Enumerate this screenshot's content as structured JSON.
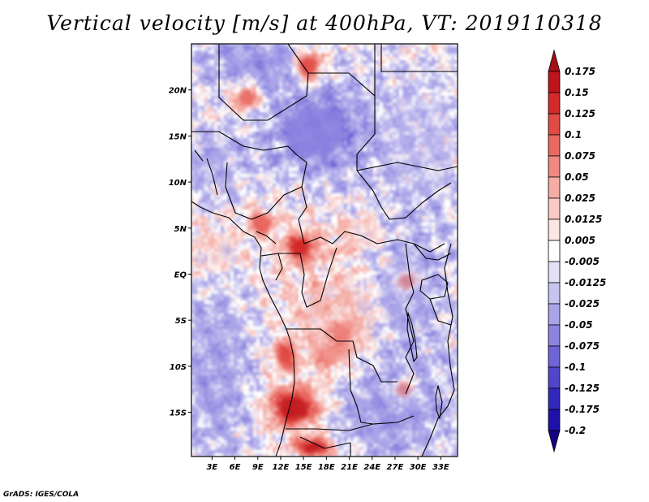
{
  "chart_data": {
    "type": "heatmap",
    "title": "Vertical velocity [m/s] at 400hPa, VT: 2019110318",
    "xlabel": "",
    "ylabel": "",
    "x_ticks": [
      {
        "value": 3,
        "label": "3E"
      },
      {
        "value": 6,
        "label": "6E"
      },
      {
        "value": 9,
        "label": "9E"
      },
      {
        "value": 12,
        "label": "12E"
      },
      {
        "value": 15,
        "label": "15E"
      },
      {
        "value": 18,
        "label": "18E"
      },
      {
        "value": 21,
        "label": "21E"
      },
      {
        "value": 24,
        "label": "24E"
      },
      {
        "value": 27,
        "label": "27E"
      },
      {
        "value": 30,
        "label": "30E"
      },
      {
        "value": 33,
        "label": "33E"
      }
    ],
    "y_ticks": [
      {
        "value": 20,
        "label": "20N"
      },
      {
        "value": 15,
        "label": "15N"
      },
      {
        "value": 10,
        "label": "10N"
      },
      {
        "value": 5,
        "label": "5N"
      },
      {
        "value": 0,
        "label": "EQ"
      },
      {
        "value": -5,
        "label": "5S"
      },
      {
        "value": -10,
        "label": "10S"
      },
      {
        "value": -15,
        "label": "15S"
      }
    ],
    "xlim": [
      0.3,
      35.2
    ],
    "ylim": [
      -19.8,
      25.0
    ],
    "colorbar": {
      "position": "right",
      "levels": [
        "0.175",
        "0.15",
        "0.125",
        "0.1",
        "0.075",
        "0.05",
        "0.025",
        "0.0125",
        "0.005",
        "-0.005",
        "-0.0125",
        "-0.025",
        "-0.05",
        "-0.075",
        "-0.1",
        "-0.125",
        "-0.175",
        "-0.2"
      ],
      "colors": [
        "#a50f15",
        "#c0141d",
        "#d42a2a",
        "#e04b44",
        "#e86a62",
        "#ef8a82",
        "#f4aca5",
        "#f8cbc6",
        "#fce6e3",
        "#ffffff",
        "#e3e1f7",
        "#c8c4f0",
        "#aaa4e8",
        "#8c84df",
        "#6e64d6",
        "#5046cc",
        "#3228bf",
        "#1e10a8",
        "#140080"
      ]
    },
    "features": [
      {
        "lon": 13.7,
        "lat": -14.5,
        "w": 3.2,
        "h": 2.2,
        "value": 0.16
      },
      {
        "lon": 16.3,
        "lat": -18.8,
        "w": 2.5,
        "h": 1.0,
        "value": 0.15
      },
      {
        "lon": 14.6,
        "lat": 2.9,
        "w": 2.0,
        "h": 1.5,
        "value": 0.13
      },
      {
        "lon": 9.5,
        "lat": 5.6,
        "w": 1.8,
        "h": 1.3,
        "value": 0.09
      },
      {
        "lon": 12.6,
        "lat": -8.9,
        "w": 1.5,
        "h": 1.5,
        "value": 0.12
      },
      {
        "lon": 7.5,
        "lat": 19.2,
        "w": 1.8,
        "h": 1.5,
        "value": 0.09
      },
      {
        "lon": 15.7,
        "lat": 22.6,
        "w": 2.0,
        "h": 1.8,
        "value": 0.12
      },
      {
        "lon": 28.6,
        "lat": -0.8,
        "w": 1.5,
        "h": 1.2,
        "value": 0.09
      },
      {
        "lon": 28.1,
        "lat": -12.6,
        "w": 1.6,
        "h": 1.3,
        "value": 0.08
      },
      {
        "lon": 20.2,
        "lat": -6.6,
        "w": 1.4,
        "h": 1.4,
        "value": 0.08
      },
      {
        "lon": 18.4,
        "lat": -8.8,
        "w": 1.8,
        "h": 1.6,
        "value": 0.07
      },
      {
        "lon": 16.5,
        "lat": 15.5,
        "w": 7.0,
        "h": 5.0,
        "value": -0.07
      },
      {
        "lon": 3.5,
        "lat": -10.0,
        "w": 6.0,
        "h": 12.0,
        "value": -0.04
      },
      {
        "lon": 28.5,
        "lat": -2.0,
        "w": 6.0,
        "h": 9.0,
        "value": -0.04
      },
      {
        "lon": 9.0,
        "lat": 23.0,
        "w": 8.0,
        "h": 3.0,
        "value": -0.05
      },
      {
        "lon": 26.0,
        "lat": -15.0,
        "w": 9.0,
        "h": 6.0,
        "value": -0.045
      },
      {
        "lon": 19.5,
        "lat": -5.0,
        "w": 9.0,
        "h": 8.0,
        "value": 0.025
      },
      {
        "lon": 22.5,
        "lat": 4.5,
        "w": 6.0,
        "h": 3.0,
        "value": 0.02
      },
      {
        "lon": 3.0,
        "lat": 2.5,
        "w": 6.0,
        "h": 4.0,
        "value": 0.02
      },
      {
        "lon": 2.5,
        "lat": 12.0,
        "w": 5.0,
        "h": 4.0,
        "value": -0.03
      },
      {
        "lon": 30.0,
        "lat": 14.0,
        "w": 9.0,
        "h": 10.0,
        "value": -0.02
      }
    ],
    "boundary_color": "#000000"
  },
  "credit": "GrADS: IGES/COLA"
}
